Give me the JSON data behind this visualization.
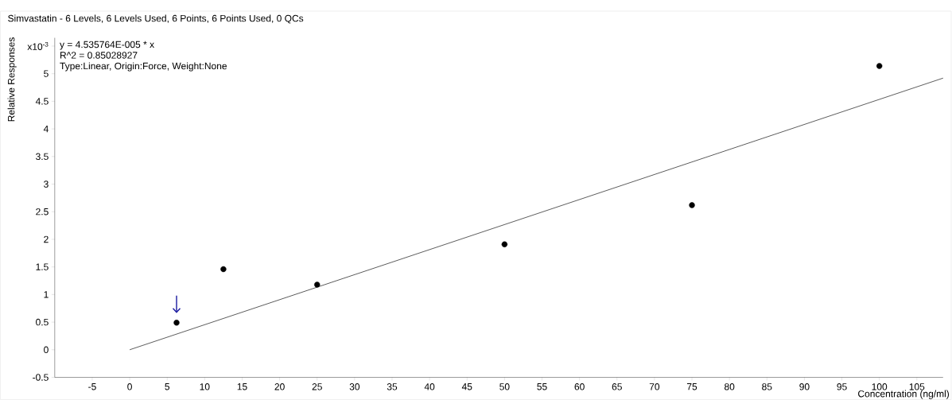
{
  "chart_data": {
    "type": "scatter",
    "title": "Simvastatin - 6 Levels, 6 Levels Used, 6 Points, 6 Points Used, 0 QCs",
    "xlabel": "Concentration (ng/ml)",
    "ylabel": "Relative Responses",
    "annotations": [
      "y = 4.535764E-005 * x",
      "R^2 = 0.85028927",
      "Type:Linear, Origin:Force, Weight:None"
    ],
    "series": [
      {
        "color": "#000000",
        "marker": "circle",
        "x": [
          6.25,
          12.5,
          25,
          50,
          75,
          100
        ],
        "values": [
          0.49,
          1.46,
          1.18,
          1.91,
          2.62,
          5.14
        ]
      },
      {
        "type": "line",
        "color": "#333333",
        "marker": "none",
        "x": [
          0,
          108.5
        ],
        "values": [
          0,
          4.92
        ]
      }
    ],
    "xlim": [
      -10,
      108.5
    ],
    "ylim": [
      -0.5,
      5.65
    ],
    "xticks": [
      -5,
      0,
      5,
      10,
      15,
      20,
      25,
      30,
      35,
      40,
      45,
      50,
      55,
      60,
      65,
      70,
      75,
      80,
      85,
      90,
      95,
      100,
      105
    ],
    "yticks": [
      -0.5,
      0,
      0.5,
      1,
      1.5,
      2,
      2.5,
      3,
      3.5,
      4,
      4.5,
      5,
      {
        "value": 5.5,
        "label": "x10$^{-3}$"
      }
    ]
  }
}
